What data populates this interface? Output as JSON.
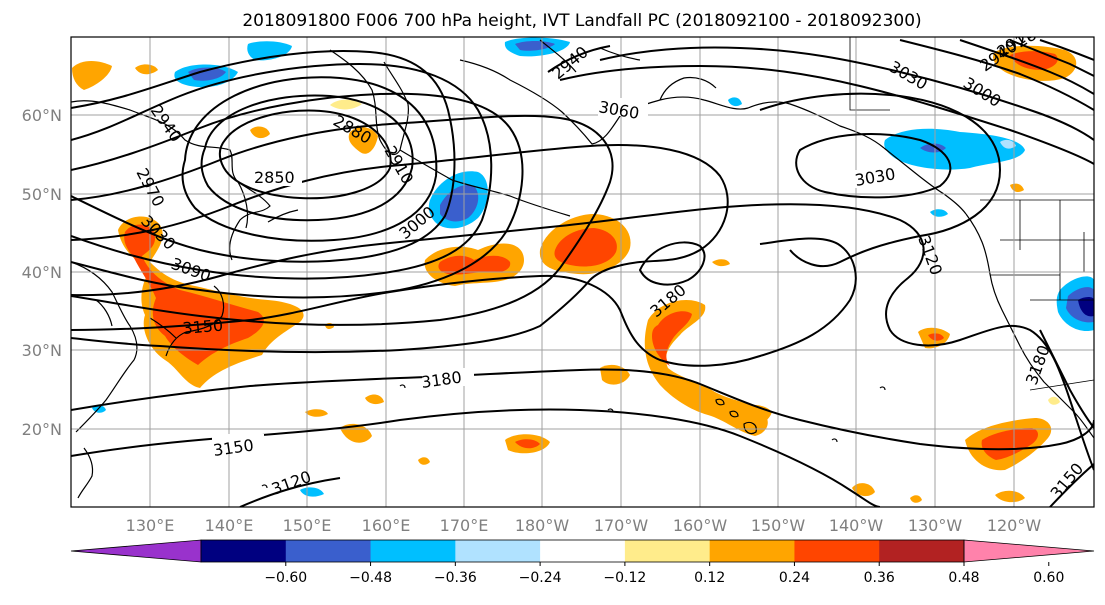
{
  "title": "2018091800 F006 700 hPa height, IVT Landfall PC (2018092100 - 2018092300)",
  "lat_labels": [
    "60°N",
    "50°N",
    "40°N",
    "30°N",
    "20°N"
  ],
  "lon_labels": [
    "130°E",
    "140°E",
    "150°E",
    "160°E",
    "170°E",
    "180°W",
    "170°W",
    "160°W",
    "150°W",
    "140°W",
    "130°W",
    "120°W"
  ],
  "contour_labels": [
    "2940",
    "2850",
    "2880",
    "2910",
    "2940",
    "2970",
    "3030",
    "3090",
    "3150",
    "3000",
    "3060",
    "3030",
    "3030",
    "3000",
    "2940",
    "2910",
    "2880",
    "3120",
    "3180",
    "3180",
    "3150",
    "3120",
    "3180",
    "3150"
  ],
  "colorbar": {
    "colors": [
      "#9932cc",
      "#000080",
      "#3a5fcd",
      "#00bfff",
      "#b0e2ff",
      "#ffffff",
      "#ffec8b",
      "#ffa500",
      "#ff4500",
      "#b22222",
      "#ff82ab"
    ],
    "tick_labels": [
      "−0.60",
      "−0.48",
      "−0.36",
      "−0.24",
      "−0.12",
      "0.12",
      "0.24",
      "0.36",
      "0.48",
      "0.60"
    ]
  }
}
